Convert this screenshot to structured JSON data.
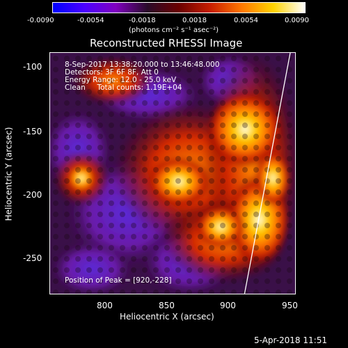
{
  "colorbar": {
    "ticks": [
      "-0.0090",
      "-0.0054",
      "-0.0018",
      "0.0018",
      "0.0054",
      "0.0090"
    ],
    "unit_label": "(photons cm⁻² s⁻¹ asec⁻²)",
    "gradient": [
      "#0000ff",
      "#4b00ff",
      "#8000c0",
      "#2a0a2a",
      "#6a0000",
      "#c81e00",
      "#ff7800",
      "#ffd200",
      "#ffffff"
    ]
  },
  "title": "Reconstructed RHESSI Image",
  "annotations": {
    "line1": "8-Sep-2017 13:38:20.000 to 13:46:48.000",
    "line2": "Detectors: 3F 6F 8F, Att 0",
    "line3": "Energy Range: 12.0 - 25.0 keV",
    "line4": "Clean     Total counts: 1.19E+04",
    "peak": "Position of Peak = [920,-228]"
  },
  "axes": {
    "xlabel": "Heliocentric X (arcsec)",
    "ylabel": "Heliocentric Y (arcsec)",
    "xticks": [
      "800",
      "850",
      "900",
      "950"
    ],
    "yticks": [
      "-100",
      "-150",
      "-200",
      "-250"
    ]
  },
  "timestamp": "5-Apr-2018 11:51",
  "colors": {
    "background": "#000000",
    "foreground": "#ffffff"
  }
}
